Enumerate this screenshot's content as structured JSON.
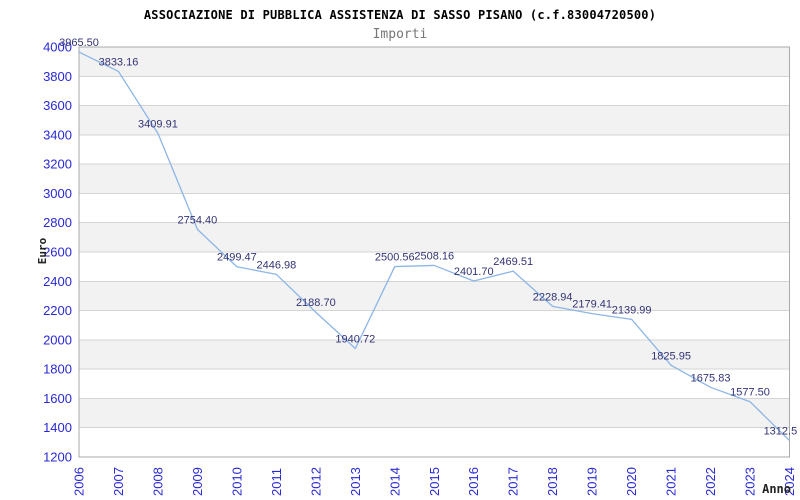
{
  "chart": {
    "title": "ASSOCIAZIONE DI PUBBLICA ASSISTENZA DI SASSO PISANO (c.f.83004720500)",
    "subtitle": "Importi"
  },
  "chart_data": {
    "type": "line",
    "title": "ASSOCIAZIONE DI PUBBLICA ASSISTENZA DI SASSO PISANO (c.f.83004720500)",
    "subtitle": "Importi",
    "xlabel": "Anno",
    "ylabel": "Euro",
    "x": [
      "2006",
      "2007",
      "2008",
      "2009",
      "2010",
      "2011",
      "2012",
      "2013",
      "2014",
      "2015",
      "2016",
      "2017",
      "2018",
      "2019",
      "2020",
      "2021",
      "2022",
      "2023",
      "2024"
    ],
    "series": [
      {
        "name": "Importi",
        "values": [
          3965.5,
          3833.16,
          3409.91,
          2754.4,
          2499.47,
          2446.98,
          2188.7,
          1940.72,
          2500.56,
          2508.16,
          2401.7,
          2469.51,
          2228.94,
          2179.41,
          2139.99,
          1825.95,
          1675.83,
          1577.5,
          1312.5
        ]
      }
    ],
    "point_labels": [
      "3965.50",
      "3833.16",
      "3409.91",
      "2754.40",
      "2499.47",
      "2446.98",
      "2188.70",
      "1940.72",
      "2500.56",
      "2508.16",
      "2401.70",
      "2469.51",
      "2228.94",
      "2179.41",
      "2139.99",
      "1825.95",
      "1675.83",
      "1577.50",
      "1312.5"
    ],
    "ylim": [
      1200,
      4000
    ],
    "ytick_step": 200,
    "legend": "none",
    "grid": "horizontal gridlines with alternating shaded bands",
    "markers": "none",
    "colors": {
      "line": "#8cb6e7",
      "tick_label": "#2929d6",
      "point_label": "#333377",
      "band": "#f2f2f2",
      "gridline": "#d4d4d4",
      "plot_border": "#aaaaaa",
      "axis_title": "#222222",
      "title": "#000000",
      "subtitle": "#777777"
    }
  }
}
